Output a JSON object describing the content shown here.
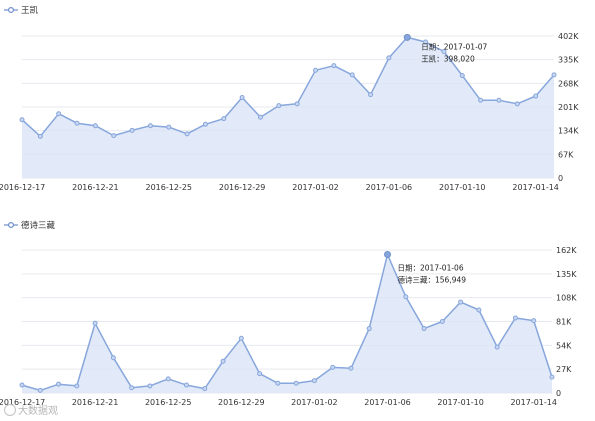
{
  "chart_data": [
    {
      "type": "area",
      "legend": "王凯",
      "x": [
        "2016-12-17",
        "2016-12-18",
        "2016-12-19",
        "2016-12-20",
        "2016-12-21",
        "2016-12-22",
        "2016-12-23",
        "2016-12-24",
        "2016-12-25",
        "2016-12-26",
        "2016-12-27",
        "2016-12-28",
        "2016-12-29",
        "2016-12-30",
        "2016-12-31",
        "2017-01-01",
        "2017-01-02",
        "2017-01-03",
        "2017-01-04",
        "2017-01-05",
        "2017-01-06",
        "2017-01-07",
        "2017-01-08",
        "2017-01-09",
        "2017-01-10",
        "2017-01-11",
        "2017-01-12",
        "2017-01-13",
        "2017-01-14",
        "2017-01-15"
      ],
      "x_tick_labels": [
        "2016-12-17",
        "2016-12-21",
        "2016-12-25",
        "2016-12-29",
        "2017-01-02",
        "2017-01-06",
        "2017-01-10",
        "2017-01-14"
      ],
      "values": [
        165000,
        118000,
        182000,
        155000,
        148000,
        120000,
        135000,
        148000,
        144000,
        125000,
        152000,
        168000,
        228000,
        172000,
        205000,
        210000,
        305000,
        318000,
        292000,
        236000,
        340000,
        398020,
        385000,
        358020,
        290000,
        220000,
        220000,
        210000,
        232000,
        292000
      ],
      "y_tick_labels": [
        "0",
        "67K",
        "134K",
        "201K",
        "268K",
        "335K",
        "402K"
      ],
      "ylim": [
        0,
        402000
      ],
      "tooltip": {
        "date_label": "日期：2017-01-07",
        "value_label": "王凯：398,020"
      },
      "highlight_index": 21,
      "color": "#87a6dc"
    },
    {
      "type": "area",
      "legend": "德诗三藏",
      "x": [
        "2016-12-17",
        "2016-12-18",
        "2016-12-19",
        "2016-12-20",
        "2016-12-21",
        "2016-12-22",
        "2016-12-23",
        "2016-12-24",
        "2016-12-25",
        "2016-12-26",
        "2016-12-27",
        "2016-12-28",
        "2016-12-29",
        "2016-12-30",
        "2016-12-31",
        "2017-01-01",
        "2017-01-02",
        "2017-01-03",
        "2017-01-04",
        "2017-01-05",
        "2017-01-06",
        "2017-01-07",
        "2017-01-08",
        "2017-01-09",
        "2017-01-10",
        "2017-01-11",
        "2017-01-12",
        "2017-01-13",
        "2017-01-14",
        "2017-01-15"
      ],
      "x_tick_labels": [
        "2016-12-17",
        "2016-12-21",
        "2016-12-25",
        "2016-12-29",
        "2017-01-02",
        "2017-01-06",
        "2017-01-10",
        "2017-01-14"
      ],
      "values": [
        9000,
        3000,
        10000,
        8000,
        79000,
        40000,
        6000,
        8000,
        16000,
        9000,
        5000,
        36000,
        62000,
        22000,
        11000,
        11000,
        14000,
        29000,
        28000,
        73000,
        156949,
        109000,
        73000,
        81000,
        103000,
        94000,
        52000,
        85000,
        82000,
        18000
      ],
      "y_tick_labels": [
        "0",
        "27K",
        "54K",
        "81K",
        "108K",
        "135K",
        "162K"
      ],
      "ylim": [
        0,
        162000
      ],
      "tooltip": {
        "date_label": "日期：2017-01-06",
        "value_label": "德诗三藏：156,949"
      },
      "highlight_index": 20,
      "color": "#87a6dc"
    }
  ],
  "watermark": "大数据观"
}
